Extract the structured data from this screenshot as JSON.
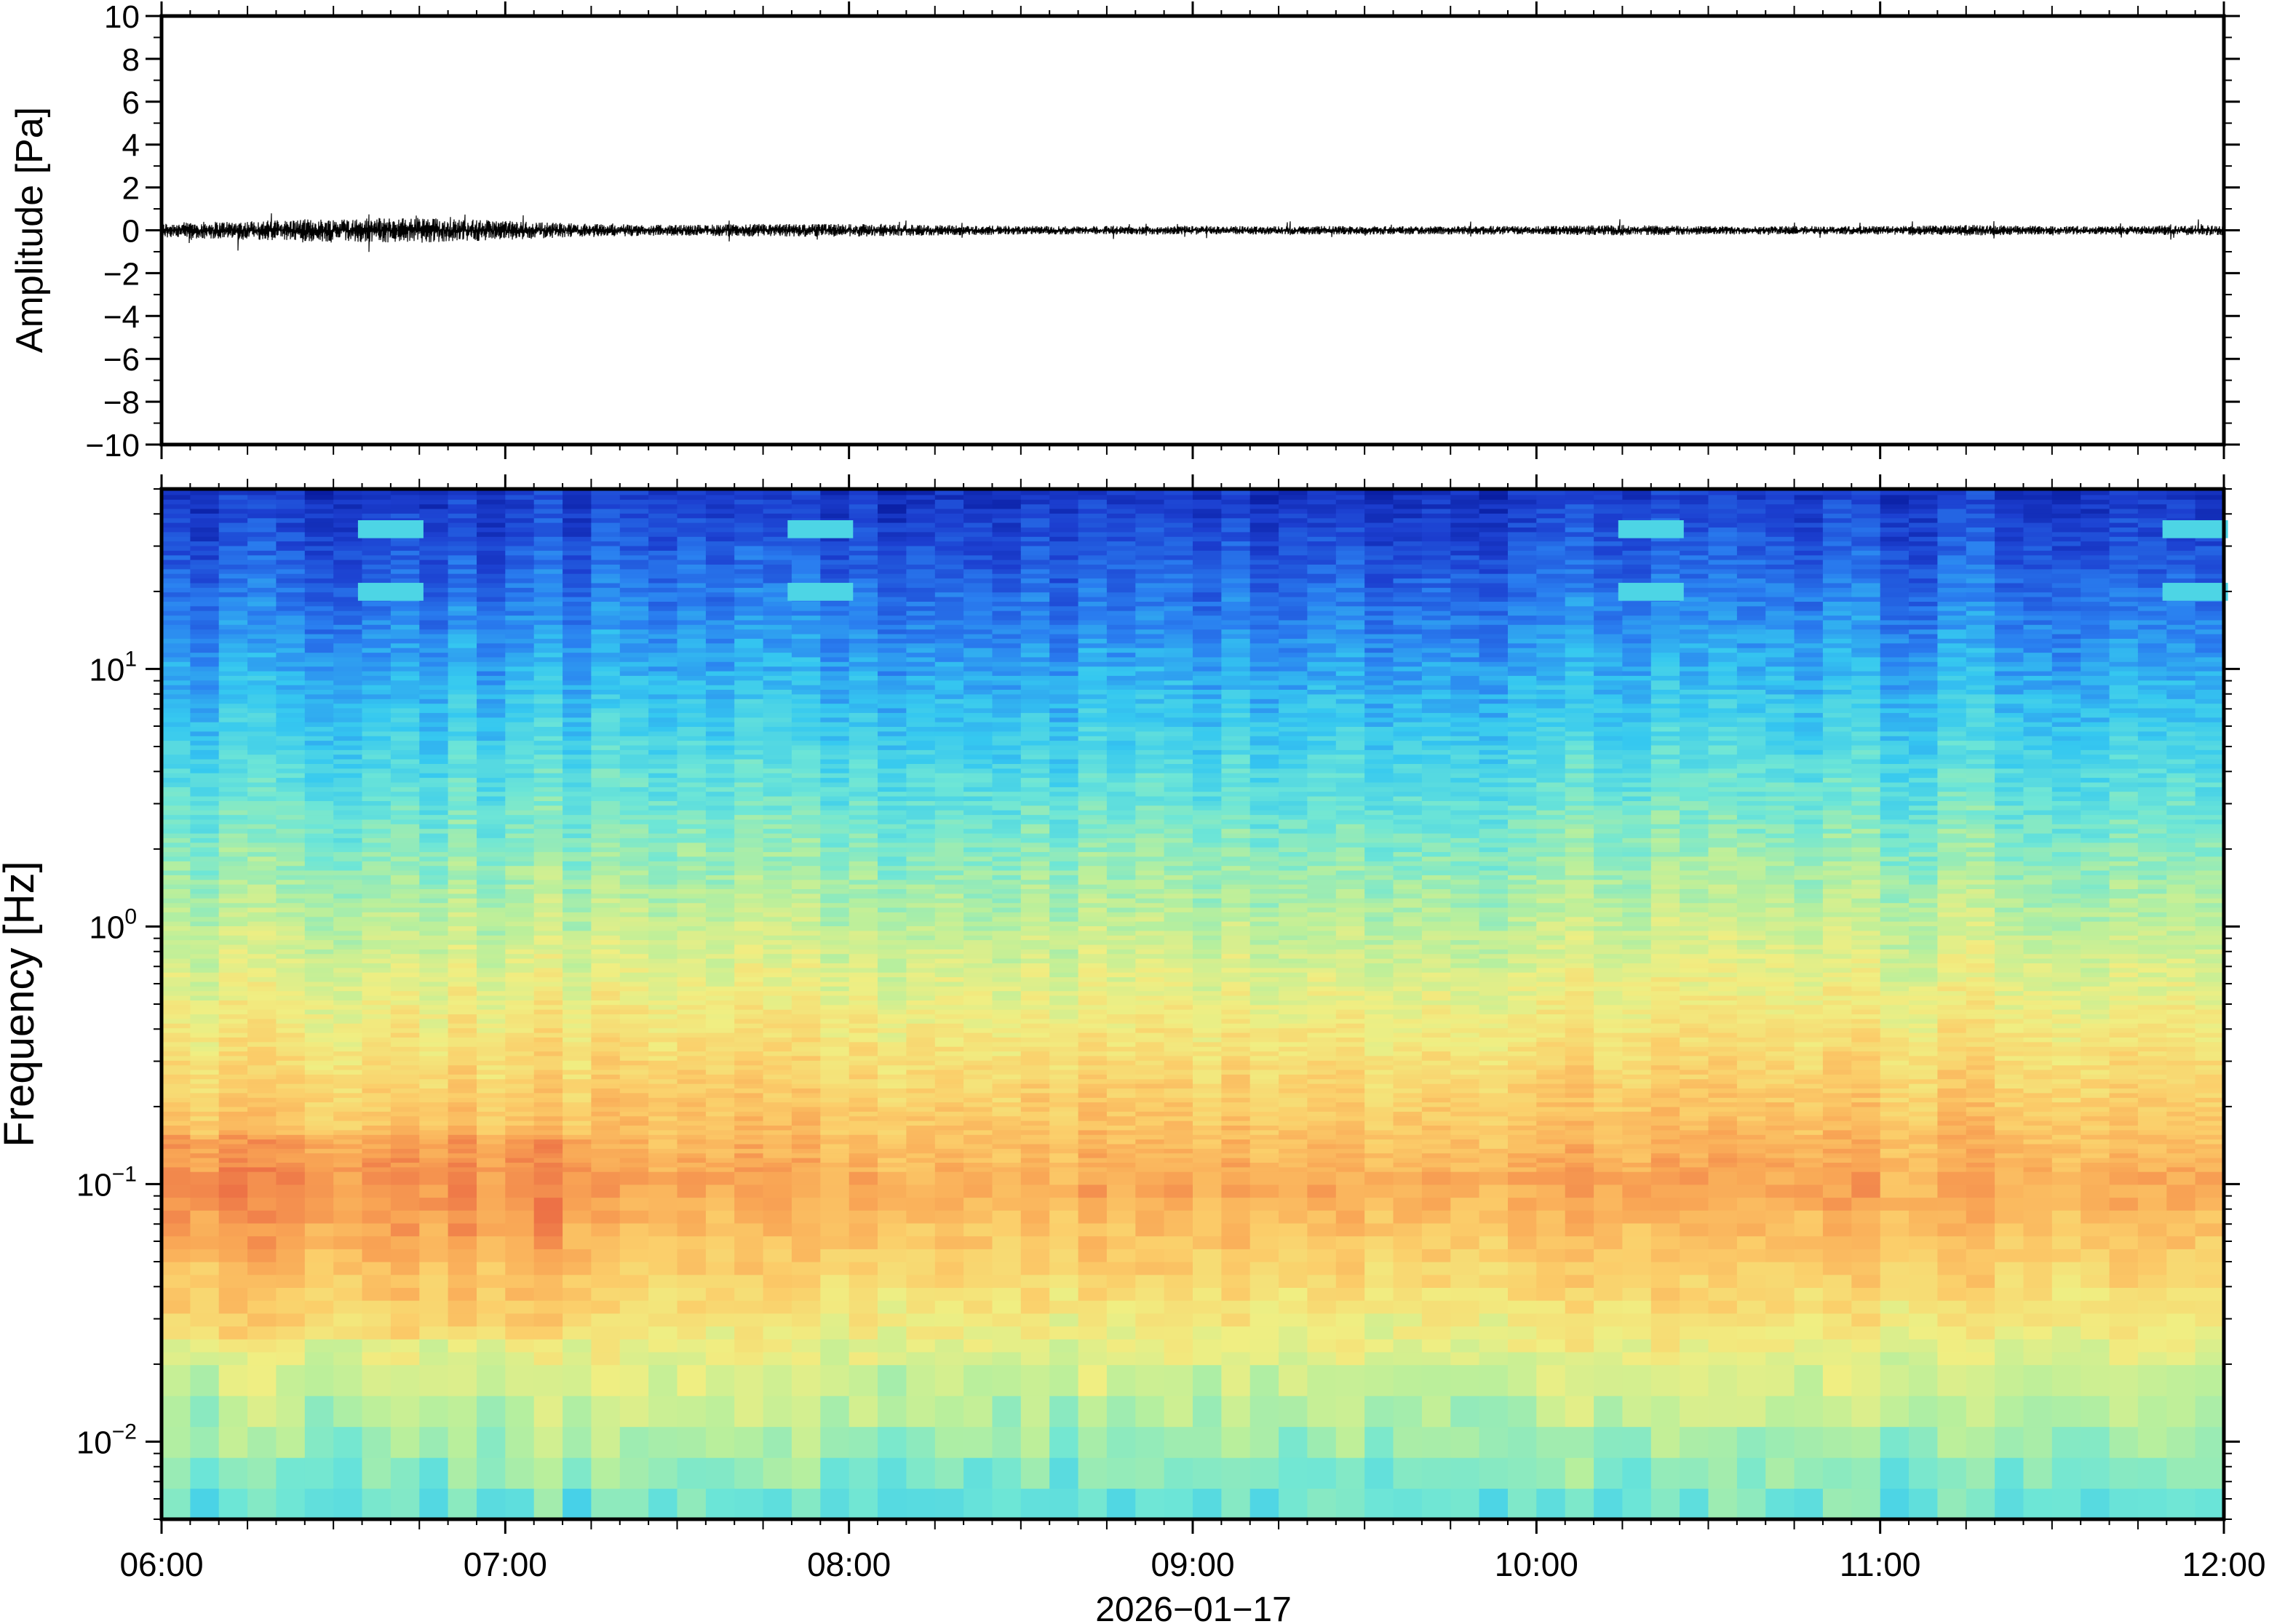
{
  "chart_data": [
    {
      "type": "line",
      "panel": "waveform",
      "ylabel": "Amplitude [Pa]",
      "ylim": [
        -10,
        10
      ],
      "yticks": [
        10,
        8,
        6,
        4,
        2,
        0,
        -2,
        -4,
        -6,
        -8,
        -10
      ],
      "ytick_labels": [
        "10",
        "8",
        "6",
        "4",
        "2",
        "0",
        "−2",
        "−4",
        "−6",
        "−8",
        "−10"
      ],
      "xlim": [
        "06:00",
        "12:00"
      ],
      "grid": false,
      "series": [
        {
          "color": "#000000",
          "x_hours": [
            6.0,
            6.25,
            6.5,
            6.75,
            7.0,
            7.25,
            7.5,
            7.75,
            8.0,
            8.25,
            8.5,
            8.75,
            9.0,
            9.25,
            9.5,
            9.75,
            10.0,
            10.25,
            10.5,
            10.75,
            11.0,
            11.25,
            11.5,
            11.75,
            12.0
          ],
          "envelope_pa": [
            0.35,
            0.45,
            0.55,
            0.6,
            0.45,
            0.3,
            0.25,
            0.3,
            0.3,
            0.25,
            0.2,
            0.2,
            0.2,
            0.2,
            0.2,
            0.2,
            0.2,
            0.25,
            0.2,
            0.2,
            0.2,
            0.25,
            0.2,
            0.2,
            0.25
          ]
        }
      ]
    },
    {
      "type": "heatmap",
      "panel": "spectrogram",
      "ylabel": "Frequency [Hz]",
      "yscale": "log",
      "ylim": [
        0.005,
        50
      ],
      "yticks": [
        {
          "base": "10",
          "exp": "1",
          "value": 10
        },
        {
          "base": "10",
          "exp": "0",
          "value": 1
        },
        {
          "base": "10",
          "exp": "−1",
          "value": 0.1
        },
        {
          "base": "10",
          "exp": "−2",
          "value": 0.01
        }
      ],
      "xlabel": "2026−01−17",
      "xtick_labels": [
        "06:00",
        "07:00",
        "08:00",
        "09:00",
        "10:00",
        "11:00",
        "12:00"
      ],
      "colormap": [
        "#5e4fa2",
        "#3288bd",
        "#66c2a5",
        "#abdda4",
        "#e6f598",
        "#fee08b",
        "#fdae61",
        "#f46d43",
        "#d53e4f"
      ],
      "colormap_display": [
        "#06189a",
        "#1c3fd0",
        "#2a7ff0",
        "#35c8f0",
        "#6ee6d6",
        "#b9ef9c",
        "#f0ee82",
        "#fbce6a",
        "#f9a655",
        "#ec6f45"
      ],
      "features": [
        {
          "label": "broadband low-frequency energy",
          "time_range": [
            "06:00",
            "07:15"
          ],
          "freq_range_hz": [
            0.03,
            0.15
          ],
          "level": "high"
        },
        {
          "label": "narrowband tones",
          "times": [
            "06:40",
            "07:55",
            "10:20",
            "11:55"
          ],
          "freq_hz": [
            20,
            35
          ]
        }
      ],
      "grid": false
    }
  ]
}
